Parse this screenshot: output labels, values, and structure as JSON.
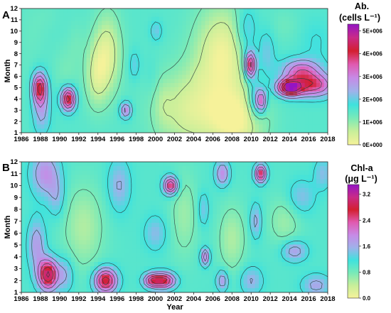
{
  "chart_data": [
    {
      "type": "heatmap",
      "panel": "A",
      "xlabel": "",
      "ylabel": "Month",
      "x_ticks": [
        "1986",
        "1988",
        "1990",
        "1992",
        "1994",
        "1996",
        "1998",
        "2000",
        "2002",
        "2004",
        "2006",
        "2008",
        "2010",
        "2012",
        "2014",
        "2016",
        "2018"
      ],
      "y_ticks": [
        "1",
        "2",
        "3",
        "4",
        "5",
        "6",
        "7",
        "8",
        "9",
        "10",
        "11",
        "12"
      ],
      "xlim": [
        1986,
        2018
      ],
      "ylim": [
        1,
        12
      ],
      "colorbar": {
        "title_line1": "Ab.",
        "title_line2": "(cells L⁻¹)",
        "ticks": [
          "0E+000",
          "1E+006",
          "2E+006",
          "3E+006",
          "4E+006",
          "5E+006"
        ],
        "tick_values": [
          0,
          1000000,
          2000000,
          3000000,
          4000000,
          5000000
        ],
        "range": [
          0,
          5300000
        ]
      },
      "background_value": 1500000,
      "features": [
        {
          "x": 1986.5,
          "y": 6.5,
          "value": 1400000,
          "sx": 0.9,
          "sy": 4.5
        },
        {
          "x": 1987.9,
          "y": 5.0,
          "value": 4200000,
          "sx": 0.5,
          "sy": 0.9
        },
        {
          "x": 1988.1,
          "y": 3.0,
          "value": 2600000,
          "sx": 0.6,
          "sy": 1.4
        },
        {
          "x": 1987.6,
          "y": 10.0,
          "value": 1400000,
          "sx": 0.9,
          "sy": 1.6
        },
        {
          "x": 1988.8,
          "y": 11.5,
          "value": 1400000,
          "sx": 0.9,
          "sy": 0.9
        },
        {
          "x": 1990.9,
          "y": 4.0,
          "value": 4600000,
          "sx": 0.5,
          "sy": 0.7
        },
        {
          "x": 1990.7,
          "y": 6.5,
          "value": 1200000,
          "sx": 0.9,
          "sy": 1.6
        },
        {
          "x": 1991.8,
          "y": 9.0,
          "value": 1300000,
          "sx": 0.6,
          "sy": 1.4
        },
        {
          "x": 1993.8,
          "y": 6.0,
          "value": 600000,
          "sx": 0.8,
          "sy": 2.0
        },
        {
          "x": 1995.0,
          "y": 8.0,
          "value": 300000,
          "sx": 1.0,
          "sy": 2.5
        },
        {
          "x": 1996.9,
          "y": 3.0,
          "value": 3200000,
          "sx": 0.4,
          "sy": 0.5
        },
        {
          "x": 1997.8,
          "y": 7.0,
          "value": 2100000,
          "sx": 0.4,
          "sy": 0.9
        },
        {
          "x": 1999.6,
          "y": 6.0,
          "value": 1700000,
          "sx": 0.5,
          "sy": 1.3
        },
        {
          "x": 2000.1,
          "y": 10.0,
          "value": 2200000,
          "sx": 0.4,
          "sy": 0.6
        },
        {
          "x": 2000.8,
          "y": 3.5,
          "value": 1200000,
          "sx": 0.6,
          "sy": 1.5
        },
        {
          "x": 2003.5,
          "y": 3.0,
          "value": 400000,
          "sx": 2.5,
          "sy": 2.5
        },
        {
          "x": 2004.5,
          "y": 6.0,
          "value": 1400000,
          "sx": 0.4,
          "sy": 0.6
        },
        {
          "x": 2006.0,
          "y": 5.0,
          "value": 1500000,
          "sx": 0.4,
          "sy": 0.6
        },
        {
          "x": 2007.0,
          "y": 8.0,
          "value": 100000,
          "sx": 2.0,
          "sy": 3.0
        },
        {
          "x": 2008.5,
          "y": 2.0,
          "value": 100000,
          "sx": 2.0,
          "sy": 2.0
        },
        {
          "x": 2009.5,
          "y": 10.0,
          "value": 2400000,
          "sx": 0.8,
          "sy": 1.6
        },
        {
          "x": 2009.9,
          "y": 7.0,
          "value": 4700000,
          "sx": 0.4,
          "sy": 0.8
        },
        {
          "x": 2010.4,
          "y": 4.0,
          "value": 2700000,
          "sx": 0.5,
          "sy": 1.2
        },
        {
          "x": 2011.1,
          "y": 3.8,
          "value": 3600000,
          "sx": 0.35,
          "sy": 0.7
        },
        {
          "x": 2011.6,
          "y": 8.0,
          "value": 2200000,
          "sx": 0.6,
          "sy": 1.5
        },
        {
          "x": 2014.0,
          "y": 5.0,
          "value": 5200000,
          "sx": 0.9,
          "sy": 0.5
        },
        {
          "x": 2016.5,
          "y": 5.2,
          "value": 3800000,
          "sx": 1.5,
          "sy": 0.7
        },
        {
          "x": 2015.2,
          "y": 6.5,
          "value": 3300000,
          "sx": 1.4,
          "sy": 0.7
        },
        {
          "x": 2016.8,
          "y": 9.0,
          "value": 1800000,
          "sx": 1.1,
          "sy": 1.5
        },
        {
          "x": 2013.5,
          "y": 10.5,
          "value": 1300000,
          "sx": 1.0,
          "sy": 1.0
        }
      ]
    },
    {
      "type": "heatmap",
      "panel": "B",
      "xlabel": "Year",
      "ylabel": "Month",
      "x_ticks": [
        "1986",
        "1988",
        "1990",
        "1992",
        "1994",
        "1996",
        "1998",
        "2000",
        "2002",
        "2004",
        "2006",
        "2008",
        "2010",
        "2012",
        "2014",
        "2016",
        "2018"
      ],
      "y_ticks": [
        "1",
        "2",
        "3",
        "4",
        "5",
        "6",
        "7",
        "8",
        "9",
        "10",
        "11",
        "12"
      ],
      "xlim": [
        1986,
        2018
      ],
      "ylim": [
        1,
        12
      ],
      "colorbar": {
        "title_line1": "Chl-a",
        "title_line2": "(μg L⁻¹)",
        "ticks": [
          "0.0",
          "0.8",
          "1.6",
          "2.4",
          "3.2"
        ],
        "tick_values": [
          0,
          0.8,
          1.6,
          2.4,
          3.2
        ],
        "range": [
          0,
          3.5
        ]
      },
      "background_value": 1.0,
      "features": [
        {
          "x": 1988.8,
          "y": 2.5,
          "value": 3.2,
          "sx": 0.7,
          "sy": 0.9
        },
        {
          "x": 1990.6,
          "y": 2.5,
          "value": 1.6,
          "sx": 0.6,
          "sy": 1.0
        },
        {
          "x": 1987.6,
          "y": 5.0,
          "value": 1.8,
          "sx": 0.6,
          "sy": 1.5
        },
        {
          "x": 1988.5,
          "y": 11.0,
          "value": 1.9,
          "sx": 1.0,
          "sy": 1.3
        },
        {
          "x": 1989.7,
          "y": 9.0,
          "value": 1.5,
          "sx": 0.6,
          "sy": 1.2
        },
        {
          "x": 1994.8,
          "y": 2.0,
          "value": 3.0,
          "sx": 0.8,
          "sy": 0.7
        },
        {
          "x": 1992.5,
          "y": 6.5,
          "value": 0.5,
          "sx": 1.5,
          "sy": 2.5
        },
        {
          "x": 1996.2,
          "y": 10.0,
          "value": 1.6,
          "sx": 0.8,
          "sy": 1.5
        },
        {
          "x": 1999.6,
          "y": 2.0,
          "value": 2.4,
          "sx": 0.6,
          "sy": 0.4
        },
        {
          "x": 2000.9,
          "y": 2.0,
          "value": 2.9,
          "sx": 0.8,
          "sy": 0.45
        },
        {
          "x": 2001.6,
          "y": 10.0,
          "value": 2.9,
          "sx": 0.5,
          "sy": 0.5
        },
        {
          "x": 2000.0,
          "y": 6.0,
          "value": 1.5,
          "sx": 0.8,
          "sy": 1.0
        },
        {
          "x": 2003.0,
          "y": 7.5,
          "value": 0.6,
          "sx": 1.0,
          "sy": 2.5
        },
        {
          "x": 2005.2,
          "y": 4.0,
          "value": 2.3,
          "sx": 0.3,
          "sy": 0.5
        },
        {
          "x": 2005.0,
          "y": 8.0,
          "value": 1.5,
          "sx": 0.4,
          "sy": 1.0
        },
        {
          "x": 2007.0,
          "y": 11.0,
          "value": 2.0,
          "sx": 0.5,
          "sy": 0.7
        },
        {
          "x": 2007.0,
          "y": 2.0,
          "value": 1.9,
          "sx": 0.4,
          "sy": 0.6
        },
        {
          "x": 2008.0,
          "y": 5.5,
          "value": 0.5,
          "sx": 1.0,
          "sy": 2.0
        },
        {
          "x": 2010.5,
          "y": 7.0,
          "value": 1.7,
          "sx": 0.4,
          "sy": 1.0
        },
        {
          "x": 2011.0,
          "y": 11.0,
          "value": 2.9,
          "sx": 0.4,
          "sy": 0.5
        },
        {
          "x": 2010.0,
          "y": 2.0,
          "value": 1.6,
          "sx": 0.8,
          "sy": 0.8
        },
        {
          "x": 2014.5,
          "y": 4.5,
          "value": 1.8,
          "sx": 0.9,
          "sy": 0.6
        },
        {
          "x": 2015.2,
          "y": 9.0,
          "value": 1.5,
          "sx": 1.0,
          "sy": 1.0
        },
        {
          "x": 2016.8,
          "y": 1.6,
          "value": 1.7,
          "sx": 1.0,
          "sy": 0.6
        },
        {
          "x": 2013.5,
          "y": 7.0,
          "value": 0.6,
          "sx": 1.2,
          "sy": 1.5
        },
        {
          "x": 2017.5,
          "y": 11.0,
          "value": 1.5,
          "sx": 0.6,
          "sy": 0.9
        }
      ]
    }
  ],
  "colors": {
    "scale": [
      "#f6f29a",
      "#c8ef9a",
      "#79eab8",
      "#3fe2dd",
      "#9fb2ea",
      "#c78ae6",
      "#e05ab0",
      "#d31f30",
      "#c92a88",
      "#9414c4"
    ]
  }
}
